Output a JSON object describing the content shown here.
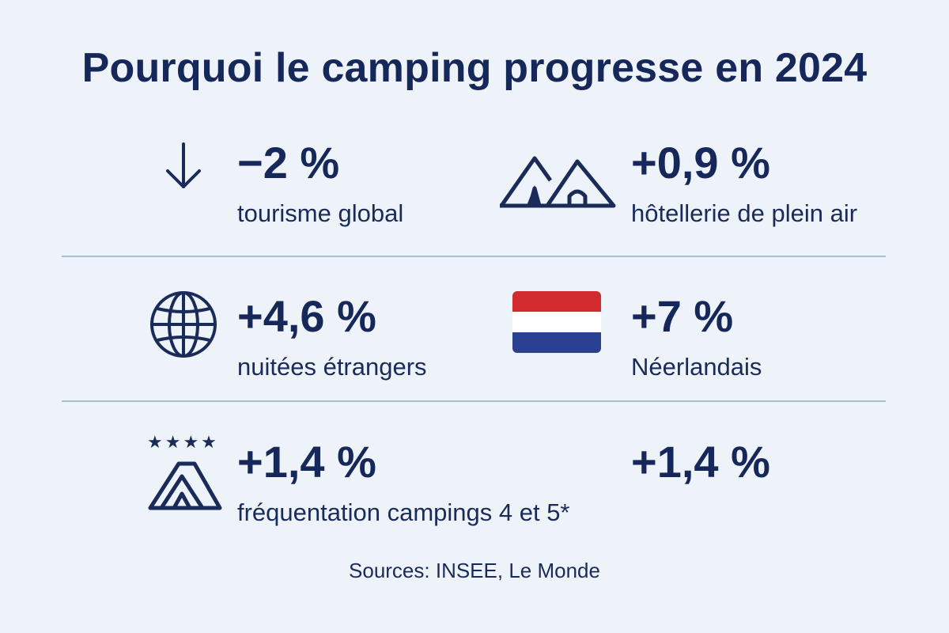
{
  "title": "Pourquoi le camping progresse en 2024",
  "stats": [
    {
      "value": "−2 %",
      "label": "tourisme global",
      "icon": "arrow-down-icon"
    },
    {
      "value": "+0,9 %",
      "label": "hôtellerie de plein air",
      "icon": "tents-icon"
    },
    {
      "value": "+4,6 %",
      "label": "nuitées étrangers",
      "icon": "globe-icon"
    },
    {
      "value": "+7 %",
      "label": "Néerlandais",
      "icon": "netherlands-flag-icon"
    },
    {
      "value": "+1,4 %",
      "label": "fréquentation campings 4 et 5*",
      "icon": "four-star-tent-icon",
      "stars": "★★★★"
    },
    {
      "value": "+1,4 %",
      "label": ""
    }
  ],
  "source": "Sources: INSEE, Le Monde",
  "colors": {
    "background": "#eef3f9",
    "text": "#16275a",
    "divider": "#a9bed3",
    "flag_red": "#d12a2f",
    "flag_white": "#ffffff",
    "flag_blue": "#2a3f8f"
  }
}
